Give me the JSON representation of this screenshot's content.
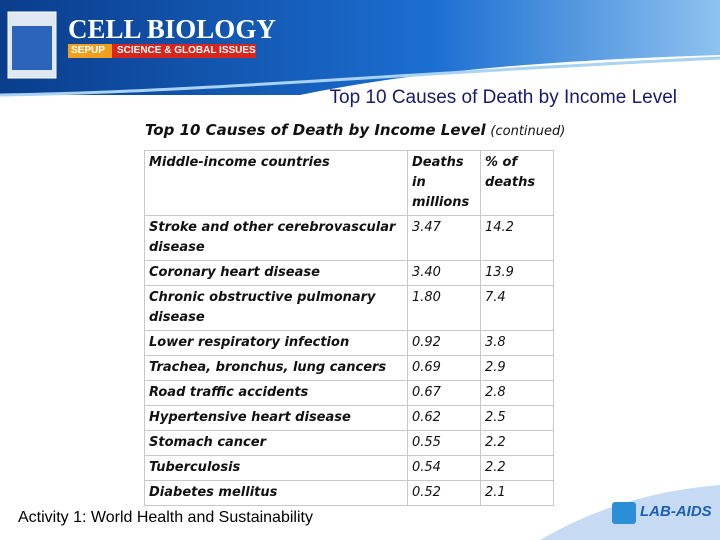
{
  "header": {
    "book": "CELL BIOLOGY",
    "program": "SEPUP",
    "series": "SCIENCE & GLOBAL ISSUES"
  },
  "slide_title": "Top 10 Causes of Death by Income Level",
  "table": {
    "title": "Top 10 Causes of Death by Income Level",
    "title_note": "(continued)",
    "columns": [
      "Middle-income countries",
      "Deaths in millions",
      "% of deaths"
    ],
    "rows": [
      [
        "Stroke and other cerebrovascular disease",
        "3.47",
        "14.2"
      ],
      [
        "Coronary heart disease",
        "3.40",
        "13.9"
      ],
      [
        "Chronic obstructive pulmonary disease",
        "1.80",
        "7.4"
      ],
      [
        "Lower respiratory infection",
        "0.92",
        "3.8"
      ],
      [
        "Trachea, bronchus, lung cancers",
        "0.69",
        "2.9"
      ],
      [
        "Road traffic accidents",
        "0.67",
        "2.8"
      ],
      [
        "Hypertensive heart disease",
        "0.62",
        "2.5"
      ],
      [
        "Stomach cancer",
        "0.55",
        "2.2"
      ],
      [
        "Tuberculosis",
        "0.54",
        "2.2"
      ],
      [
        "Diabetes mellitus",
        "0.52",
        "2.1"
      ]
    ]
  },
  "footer": "Activity 1: World Health and Sustainability",
  "logo": "LAB-AIDS"
}
